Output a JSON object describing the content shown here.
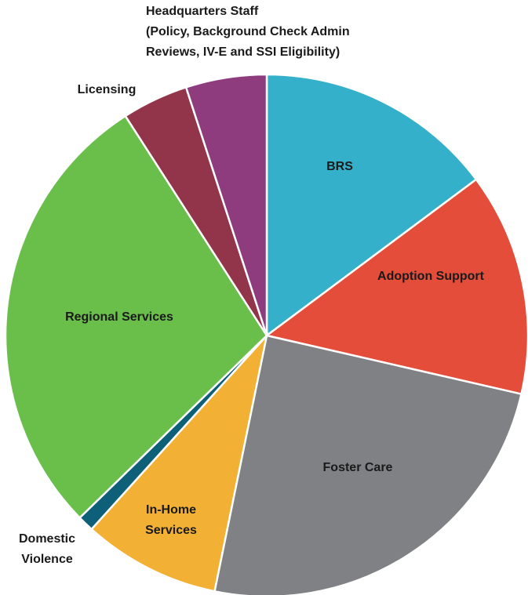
{
  "chart_data": {
    "type": "pie",
    "categories": [
      "BRS",
      "Adoption Support",
      "Foster Care",
      "In-Home\nServices",
      "Domestic\nViolence",
      "Regional Services",
      "Licensing",
      "Headquarters Staff\n(Policy, Background Check Admin\nReviews, IV-E and SSI Eligibility)"
    ],
    "values": [
      14.8,
      13.8,
      24.6,
      8.5,
      1,
      28.2,
      4.1,
      5
    ],
    "colors": [
      "#35b0cb",
      "#e44d3a",
      "#808184",
      "#f2b134",
      "#0d6078",
      "#6abf4b",
      "#92344a",
      "#8f3c7f"
    ]
  }
}
